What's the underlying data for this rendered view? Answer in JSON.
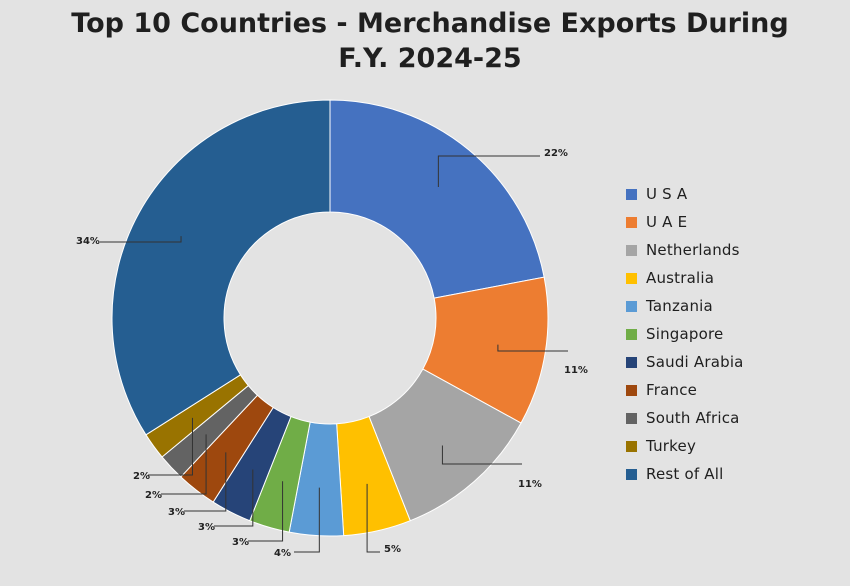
{
  "chart_data": {
    "type": "pie",
    "title_line1": "Top 10 Countries - Merchandise Exports During",
    "title_line2": "F.Y. 2024-25",
    "categories": [
      "U S A",
      "U A E",
      "Netherlands",
      "Australia",
      "Tanzania",
      "Singapore",
      "Saudi Arabia",
      "France",
      "South Africa",
      "Turkey",
      "Rest of All"
    ],
    "values": [
      22,
      11,
      11,
      5,
      4,
      3,
      3,
      3,
      2,
      2,
      34
    ],
    "value_labels": [
      "22%",
      "11%",
      "11%",
      "5%",
      "4%",
      "3%",
      "3%",
      "3%",
      "2%",
      "2%",
      "34%"
    ],
    "colors": [
      "#4572c0",
      "#ed7d31",
      "#a5a5a5",
      "#ffc000",
      "#5b9bd5",
      "#70ad47",
      "#264478",
      "#9e480e",
      "#636363",
      "#997300",
      "#255e91"
    ],
    "donut": true,
    "legend_position": "right"
  }
}
